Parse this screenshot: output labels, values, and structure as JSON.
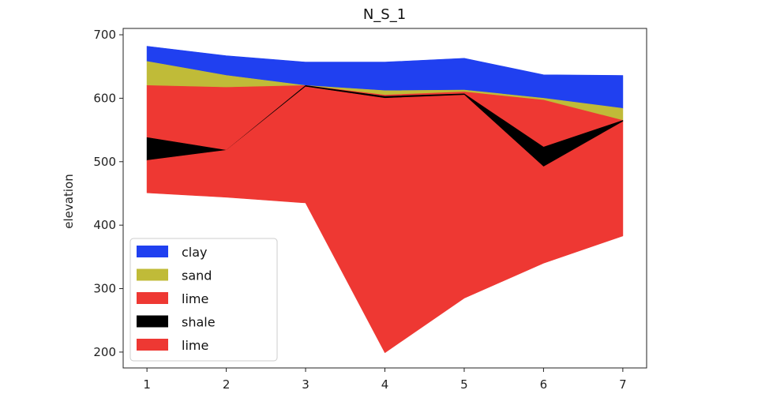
{
  "chart_data": {
    "type": "area",
    "title": "N_S_1",
    "xlabel": "",
    "ylabel": "elevation",
    "x": [
      1,
      2,
      3,
      4,
      5,
      6,
      7
    ],
    "xlim": [
      0.7,
      7.3
    ],
    "ylim": [
      175,
      710
    ],
    "xticks": [
      1,
      2,
      3,
      4,
      5,
      6,
      7
    ],
    "yticks": [
      200,
      300,
      400,
      500,
      600,
      700
    ],
    "grid": false,
    "legend_position": "lower-left",
    "series": [
      {
        "name": "clay",
        "color": "#2040f0",
        "top": [
          682,
          667,
          657,
          657,
          663,
          637,
          636
        ],
        "bottom": [
          658,
          636,
          620,
          612,
          613,
          600,
          584
        ]
      },
      {
        "name": "sand",
        "color": "#c0bb38",
        "top": [
          658,
          636,
          620,
          612,
          613,
          600,
          584
        ],
        "bottom": [
          620,
          617,
          620,
          605,
          610,
          597,
          565
        ]
      },
      {
        "name": "lime",
        "color": "#ee3833",
        "top": [
          620,
          617,
          620,
          605,
          610,
          597,
          565
        ],
        "bottom": [
          538,
          518,
          620,
          603,
          607,
          523,
          565
        ]
      },
      {
        "name": "shale",
        "color": "#000000",
        "top": [
          538,
          518,
          620,
          603,
          607,
          523,
          565
        ],
        "bottom": [
          502,
          518,
          618,
          600,
          605,
          492,
          563
        ]
      },
      {
        "name": "lime",
        "color": "#ee3833",
        "top": [
          502,
          518,
          618,
          600,
          605,
          492,
          563
        ],
        "bottom": [
          451,
          444,
          435,
          199,
          285,
          340,
          383
        ]
      }
    ]
  }
}
